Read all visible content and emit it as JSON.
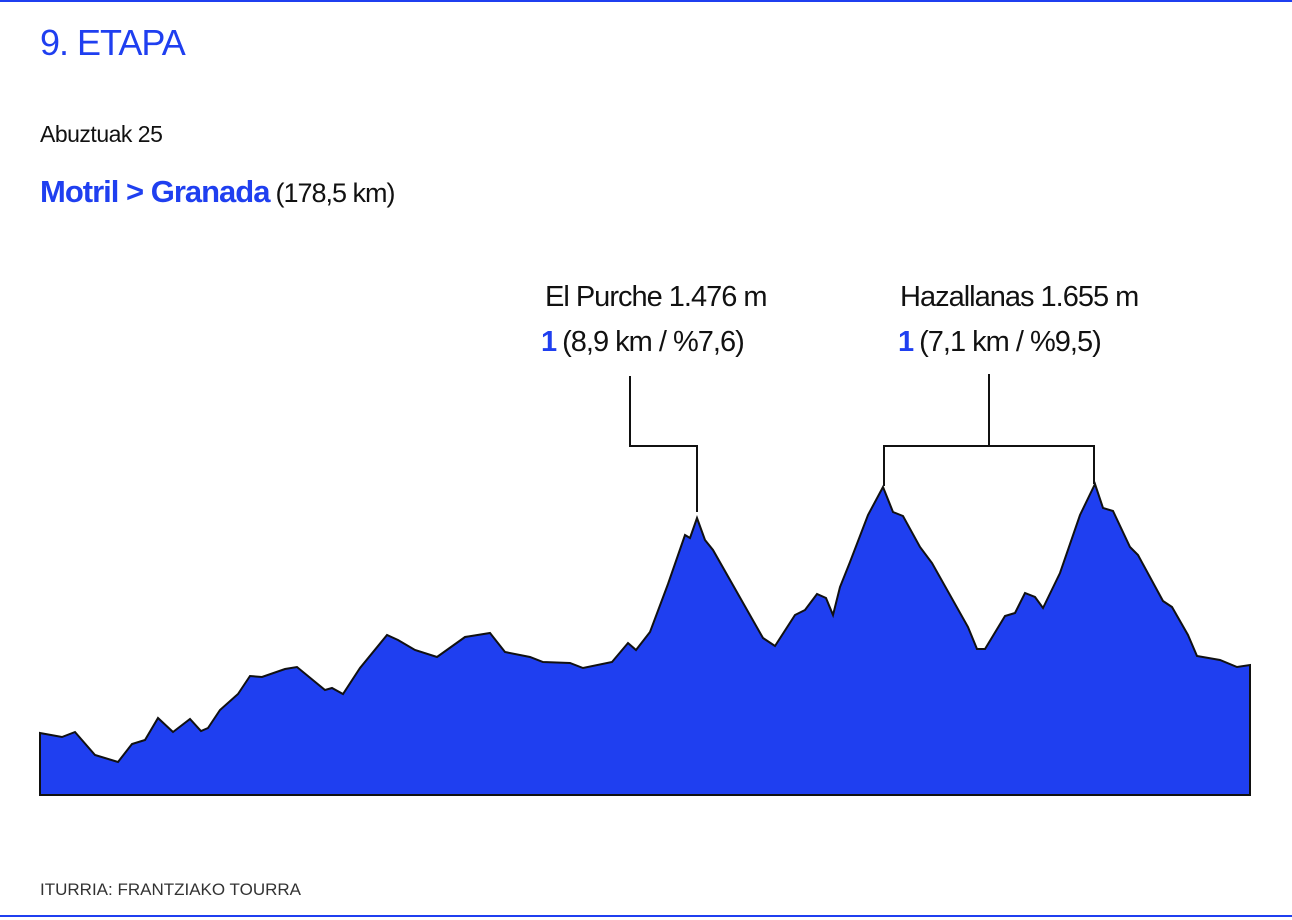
{
  "header": {
    "title": "9. ETAPA",
    "date": "Abuztuak 25",
    "route": "Motril > Granada",
    "distance": "(178,5 km)"
  },
  "climbs": [
    {
      "name": "El Purche 1.476 m",
      "category": "1",
      "detail": "(8,9 km / %7,6)"
    },
    {
      "name": "Hazallanas 1.655 m",
      "category": "1",
      "detail": "(7,1 km / %9,5)"
    }
  ],
  "source": "ITURRIA: FRANTZIAKO TOURRA"
}
